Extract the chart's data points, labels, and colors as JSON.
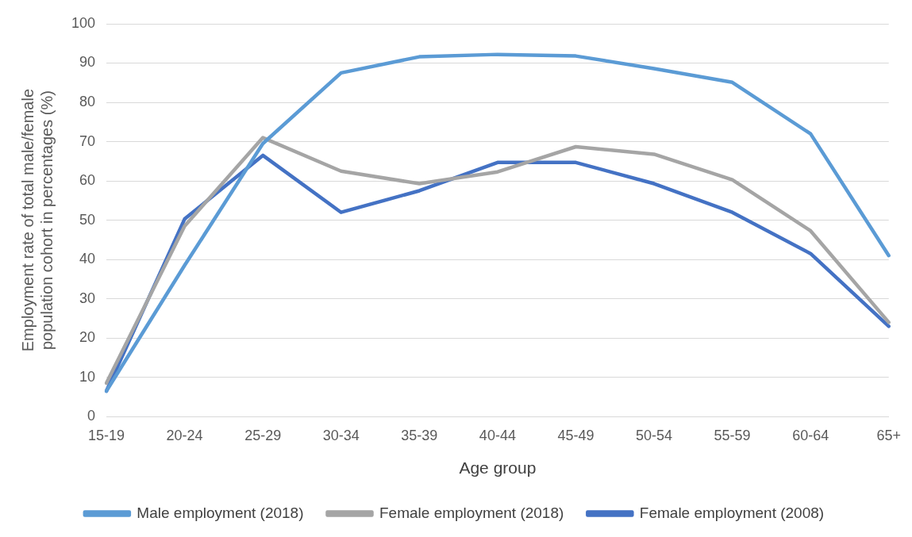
{
  "chart_data": {
    "type": "line",
    "xlabel": "Age group",
    "ylabel": "Employment rate of total male/female population cohort in percentages (%)",
    "categories": [
      "15-19",
      "20-24",
      "25-29",
      "30-34",
      "35-39",
      "40-44",
      "45-49",
      "50-54",
      "55-59",
      "60-64",
      "65+"
    ],
    "series": [
      {
        "name": "Male employment (2018)",
        "color": "#5b9bd5",
        "values": [
          6.5,
          38.5,
          69.5,
          87.5,
          91.6,
          92.2,
          91.8,
          88.6,
          85.1,
          72,
          41
        ]
      },
      {
        "name": "Female employment (2018)",
        "color": "#a5a5a5",
        "values": [
          8.5,
          48.5,
          71,
          62.5,
          59.3,
          62.3,
          68.7,
          66.8,
          60.3,
          47.3,
          24
        ]
      },
      {
        "name": "Female employment (2008)",
        "color": "#4472c4",
        "values": [
          6.5,
          50.3,
          66.5,
          52,
          57.5,
          64.7,
          64.7,
          59.3,
          52,
          41.5,
          23
        ]
      }
    ],
    "ylim": [
      0,
      100
    ],
    "yticks": [
      0,
      10,
      20,
      30,
      40,
      50,
      60,
      70,
      80,
      90,
      100
    ],
    "grid": "y",
    "legend": "bottom",
    "marker": "none",
    "line_style": "solid"
  }
}
